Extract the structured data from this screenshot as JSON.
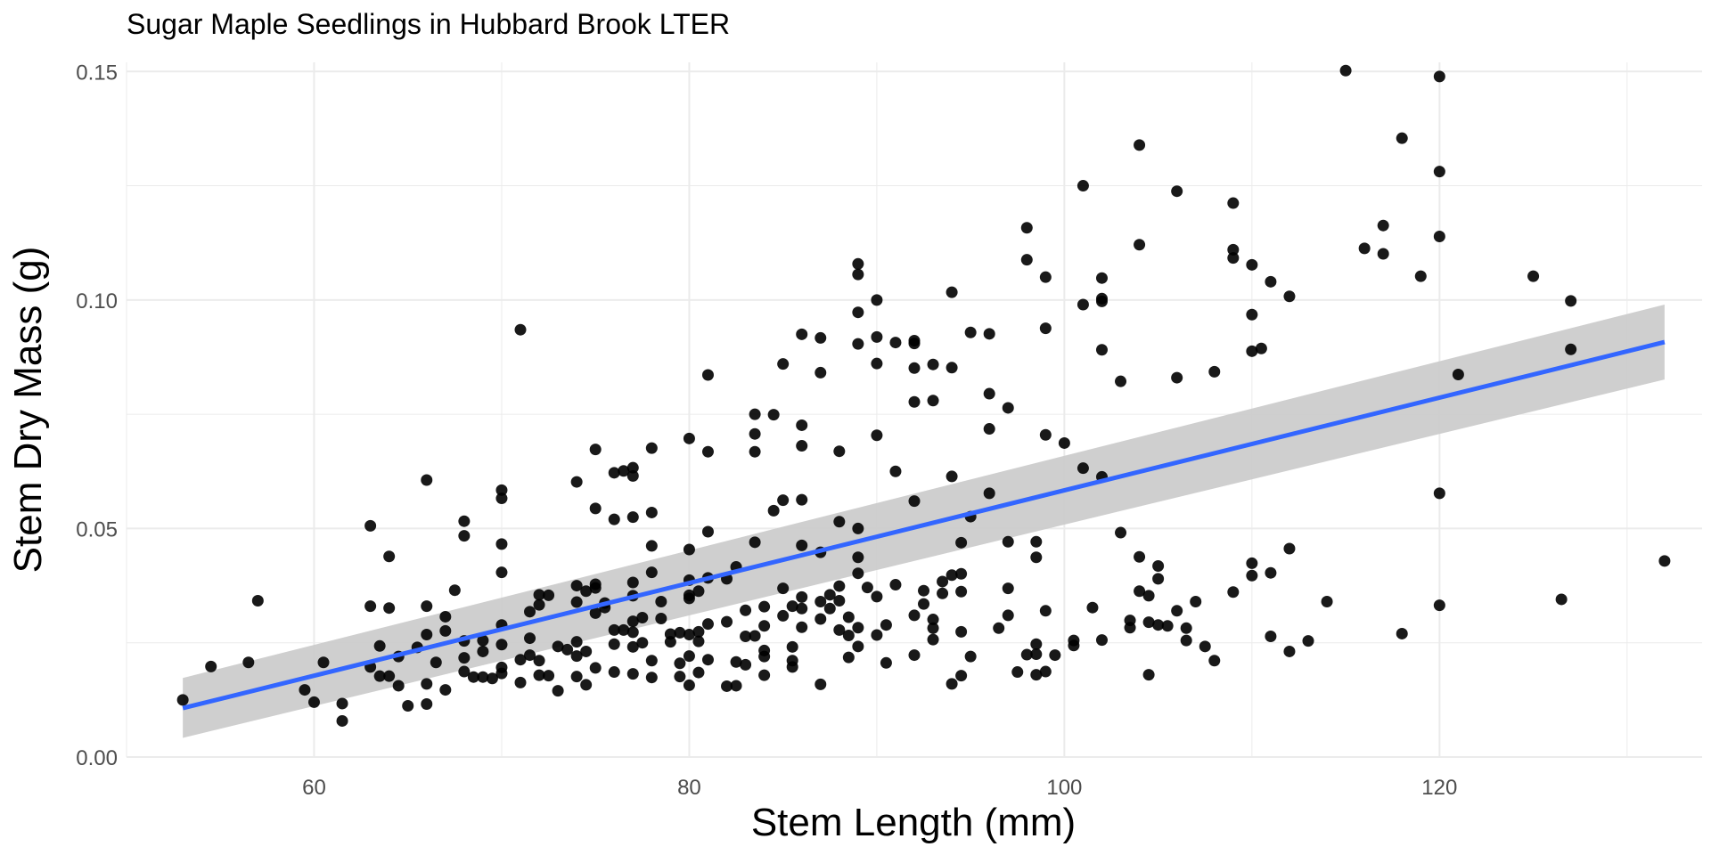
{
  "chart_data": {
    "type": "scatter",
    "title": "Sugar Maple Seedlings in Hubbard Brook LTER",
    "xlabel": "Stem Length (mm)",
    "ylabel": "Stem Dry Mass (g)",
    "xlim": [
      50,
      134
    ],
    "ylim": [
      0,
      0.152
    ],
    "x_ticks": [
      60,
      80,
      100,
      120
    ],
    "x_tick_labels": [
      "60",
      "80",
      "100",
      "120"
    ],
    "y_ticks": [
      0.0,
      0.05,
      0.1,
      0.15
    ],
    "y_tick_labels": [
      "0.00",
      "0.05",
      "0.10",
      "0.15"
    ],
    "grid": true,
    "point_color": "#000000",
    "fit_color": "#3366ff",
    "band_color": "#cccccc",
    "fit_line": {
      "method": "lm",
      "x": [
        53,
        132
      ],
      "y": [
        0.0107,
        0.0908
      ],
      "ci_lower": [
        0.0042,
        0.0826
      ],
      "ci_upper": [
        0.0173,
        0.099
      ]
    },
    "points": [
      [
        53,
        0.0125
      ],
      [
        54.5,
        0.0198
      ],
      [
        56.5,
        0.0207
      ],
      [
        57,
        0.0342
      ],
      [
        59.5,
        0.0147
      ],
      [
        60,
        0.012
      ],
      [
        60.5,
        0.0207
      ],
      [
        61.5,
        0.0117
      ],
      [
        61.5,
        0.0079
      ],
      [
        63,
        0.0506
      ],
      [
        63,
        0.033
      ],
      [
        63,
        0.0197
      ],
      [
        63.5,
        0.0243
      ],
      [
        63.5,
        0.0177
      ],
      [
        64,
        0.0439
      ],
      [
        64,
        0.0326
      ],
      [
        64,
        0.0177
      ],
      [
        64.5,
        0.022
      ],
      [
        64.5,
        0.0156
      ],
      [
        65,
        0.0112
      ],
      [
        65.5,
        0.024
      ],
      [
        66,
        0.0606
      ],
      [
        66,
        0.033
      ],
      [
        66,
        0.0268
      ],
      [
        66,
        0.0116
      ],
      [
        66,
        0.016
      ],
      [
        66.5,
        0.0207
      ],
      [
        67,
        0.0307
      ],
      [
        67,
        0.0276
      ],
      [
        67,
        0.0147
      ],
      [
        67.5,
        0.0365
      ],
      [
        68,
        0.0516
      ],
      [
        68,
        0.0484
      ],
      [
        68,
        0.0254
      ],
      [
        68,
        0.0217
      ],
      [
        68,
        0.0187
      ],
      [
        68.5,
        0.0175
      ],
      [
        69,
        0.0175
      ],
      [
        69,
        0.0255
      ],
      [
        69,
        0.0231
      ],
      [
        69.5,
        0.0172
      ],
      [
        70,
        0.0584
      ],
      [
        70,
        0.0566
      ],
      [
        70,
        0.0466
      ],
      [
        70,
        0.0404
      ],
      [
        70,
        0.0289
      ],
      [
        70,
        0.0246
      ],
      [
        70,
        0.0196
      ],
      [
        70,
        0.0183
      ],
      [
        71,
        0.0935
      ],
      [
        71,
        0.0213
      ],
      [
        71,
        0.0163
      ],
      [
        71.5,
        0.0318
      ],
      [
        71.5,
        0.026
      ],
      [
        71.5,
        0.0223
      ],
      [
        72,
        0.0355
      ],
      [
        72,
        0.0333
      ],
      [
        72,
        0.0211
      ],
      [
        72,
        0.0179
      ],
      [
        72.5,
        0.0354
      ],
      [
        72.5,
        0.0178
      ],
      [
        73,
        0.0242
      ],
      [
        73,
        0.0145
      ],
      [
        73.5,
        0.0235
      ],
      [
        74,
        0.0339
      ],
      [
        74,
        0.0221
      ],
      [
        74,
        0.0602
      ],
      [
        74,
        0.0375
      ],
      [
        74,
        0.0252
      ],
      [
        74,
        0.0176
      ],
      [
        74.5,
        0.0363
      ],
      [
        74.5,
        0.0231
      ],
      [
        74.5,
        0.0158
      ],
      [
        75,
        0.0673
      ],
      [
        75,
        0.0544
      ],
      [
        75,
        0.0378
      ],
      [
        75,
        0.037
      ],
      [
        75,
        0.0315
      ],
      [
        75,
        0.0195
      ],
      [
        75.5,
        0.0337
      ],
      [
        75.5,
        0.0327
      ],
      [
        76,
        0.0622
      ],
      [
        76,
        0.052
      ],
      [
        76,
        0.0278
      ],
      [
        76,
        0.0247
      ],
      [
        76,
        0.0186
      ],
      [
        76.5,
        0.0626
      ],
      [
        76.5,
        0.0278
      ],
      [
        77,
        0.0633
      ],
      [
        77,
        0.0615
      ],
      [
        77,
        0.0525
      ],
      [
        77,
        0.0382
      ],
      [
        77,
        0.0353
      ],
      [
        77,
        0.0297
      ],
      [
        77,
        0.0273
      ],
      [
        77,
        0.0241
      ],
      [
        77,
        0.0182
      ],
      [
        77.5,
        0.0305
      ],
      [
        77.5,
        0.025
      ],
      [
        78,
        0.0676
      ],
      [
        78,
        0.0535
      ],
      [
        78,
        0.0462
      ],
      [
        78,
        0.0404
      ],
      [
        78,
        0.0211
      ],
      [
        78,
        0.0174
      ],
      [
        78.5,
        0.034
      ],
      [
        78.5,
        0.0303
      ],
      [
        79,
        0.0269
      ],
      [
        79,
        0.0252
      ],
      [
        79.5,
        0.0272
      ],
      [
        79.5,
        0.0205
      ],
      [
        79.5,
        0.0176
      ],
      [
        80,
        0.0697
      ],
      [
        80,
        0.0454
      ],
      [
        80,
        0.0387
      ],
      [
        80,
        0.0354
      ],
      [
        80,
        0.0347
      ],
      [
        80,
        0.0268
      ],
      [
        80,
        0.0221
      ],
      [
        80,
        0.0157
      ],
      [
        80.5,
        0.0363
      ],
      [
        80.5,
        0.0274
      ],
      [
        80.5,
        0.0253
      ],
      [
        80.5,
        0.0185
      ],
      [
        81,
        0.0836
      ],
      [
        81,
        0.0668
      ],
      [
        81,
        0.0493
      ],
      [
        81,
        0.0392
      ],
      [
        81,
        0.0291
      ],
      [
        81,
        0.0213
      ],
      [
        82,
        0.039
      ],
      [
        82,
        0.0296
      ],
      [
        82,
        0.0155
      ],
      [
        82.5,
        0.0416
      ],
      [
        82.5,
        0.0208
      ],
      [
        82.5,
        0.0156
      ],
      [
        83,
        0.0321
      ],
      [
        83,
        0.0264
      ],
      [
        83,
        0.0202
      ],
      [
        83.5,
        0.075
      ],
      [
        83.5,
        0.0707
      ],
      [
        83.5,
        0.0668
      ],
      [
        83.5,
        0.047
      ],
      [
        83.5,
        0.0265
      ],
      [
        84,
        0.0329
      ],
      [
        84,
        0.0287
      ],
      [
        84,
        0.0233
      ],
      [
        84,
        0.022
      ],
      [
        84,
        0.0179
      ],
      [
        84.5,
        0.0749
      ],
      [
        84.5,
        0.0539
      ],
      [
        85,
        0.086
      ],
      [
        85,
        0.0562
      ],
      [
        85,
        0.0369
      ],
      [
        85,
        0.0309
      ],
      [
        85.5,
        0.033
      ],
      [
        85.5,
        0.0241
      ],
      [
        85.5,
        0.0211
      ],
      [
        85.5,
        0.0197
      ],
      [
        86,
        0.0925
      ],
      [
        86,
        0.0726
      ],
      [
        86,
        0.0681
      ],
      [
        86,
        0.0563
      ],
      [
        86,
        0.0463
      ],
      [
        86,
        0.035
      ],
      [
        86,
        0.0325
      ],
      [
        86,
        0.0284
      ],
      [
        87,
        0.0917
      ],
      [
        87,
        0.0841
      ],
      [
        87,
        0.0448
      ],
      [
        87,
        0.034
      ],
      [
        87,
        0.0302
      ],
      [
        87,
        0.0159
      ],
      [
        87.5,
        0.0355
      ],
      [
        87.5,
        0.0325
      ],
      [
        88,
        0.0669
      ],
      [
        88,
        0.0515
      ],
      [
        88,
        0.0374
      ],
      [
        88,
        0.0342
      ],
      [
        88,
        0.0278
      ],
      [
        88.5,
        0.0306
      ],
      [
        88.5,
        0.0266
      ],
      [
        88.5,
        0.0218
      ],
      [
        89,
        0.1079
      ],
      [
        89,
        0.1056
      ],
      [
        89,
        0.0973
      ],
      [
        89,
        0.0904
      ],
      [
        89,
        0.05
      ],
      [
        89,
        0.0437
      ],
      [
        89,
        0.0402
      ],
      [
        89,
        0.0283
      ],
      [
        89,
        0.0242
      ],
      [
        89.5,
        0.0371
      ],
      [
        90,
        0.1
      ],
      [
        90,
        0.0919
      ],
      [
        90,
        0.0861
      ],
      [
        90,
        0.0704
      ],
      [
        90,
        0.0351
      ],
      [
        90,
        0.0267
      ],
      [
        90.5,
        0.0289
      ],
      [
        90.5,
        0.0206
      ],
      [
        91,
        0.0907
      ],
      [
        91,
        0.0625
      ],
      [
        91,
        0.0377
      ],
      [
        92,
        0.0911
      ],
      [
        92,
        0.0905
      ],
      [
        92,
        0.0851
      ],
      [
        92,
        0.0777
      ],
      [
        92,
        0.056
      ],
      [
        92,
        0.031
      ],
      [
        92,
        0.0223
      ],
      [
        92.5,
        0.0364
      ],
      [
        92.5,
        0.0335
      ],
      [
        93,
        0.0859
      ],
      [
        93,
        0.078
      ],
      [
        93,
        0.0301
      ],
      [
        93,
        0.0282
      ],
      [
        93,
        0.0257
      ],
      [
        93.5,
        0.0384
      ],
      [
        93.5,
        0.0358
      ],
      [
        94,
        0.1017
      ],
      [
        94,
        0.0852
      ],
      [
        94,
        0.0614
      ],
      [
        94,
        0.0398
      ],
      [
        94,
        0.016
      ],
      [
        94.5,
        0.0401
      ],
      [
        94.5,
        0.0469
      ],
      [
        94.5,
        0.0362
      ],
      [
        94.5,
        0.0274
      ],
      [
        94.5,
        0.0178
      ],
      [
        95,
        0.0929
      ],
      [
        95,
        0.0526
      ],
      [
        95,
        0.022
      ],
      [
        96,
        0.0926
      ],
      [
        96,
        0.0795
      ],
      [
        96,
        0.0718
      ],
      [
        96,
        0.0577
      ],
      [
        96.5,
        0.0282
      ],
      [
        97,
        0.0764
      ],
      [
        97,
        0.0471
      ],
      [
        97,
        0.0369
      ],
      [
        97,
        0.031
      ],
      [
        97.5,
        0.0186
      ],
      [
        98,
        0.1158
      ],
      [
        98,
        0.1088
      ],
      [
        98,
        0.0224
      ],
      [
        98.5,
        0.0471
      ],
      [
        98.5,
        0.0437
      ],
      [
        98.5,
        0.0247
      ],
      [
        98.5,
        0.018
      ],
      [
        98.5,
        0.0225
      ],
      [
        99,
        0.105
      ],
      [
        99,
        0.0938
      ],
      [
        99,
        0.0705
      ],
      [
        99,
        0.032
      ],
      [
        99,
        0.0187
      ],
      [
        99.5,
        0.0223
      ],
      [
        100,
        0.0687
      ],
      [
        100.5,
        0.0255
      ],
      [
        100.5,
        0.0244
      ],
      [
        101,
        0.125
      ],
      [
        101,
        0.099
      ],
      [
        101,
        0.0632
      ],
      [
        101.5,
        0.0327
      ],
      [
        102,
        0.1048
      ],
      [
        102,
        0.1003
      ],
      [
        102,
        0.0997
      ],
      [
        102,
        0.0891
      ],
      [
        102,
        0.0613
      ],
      [
        102,
        0.0256
      ],
      [
        103,
        0.0822
      ],
      [
        103,
        0.0491
      ],
      [
        103.5,
        0.0299
      ],
      [
        103.5,
        0.0283
      ],
      [
        104,
        0.1339
      ],
      [
        104,
        0.1121
      ],
      [
        104,
        0.0438
      ],
      [
        104,
        0.0363
      ],
      [
        104.5,
        0.0353
      ],
      [
        104.5,
        0.018
      ],
      [
        104.5,
        0.0295
      ],
      [
        105,
        0.0418
      ],
      [
        105,
        0.039
      ],
      [
        105,
        0.0289
      ],
      [
        105.5,
        0.0287
      ],
      [
        106,
        0.1238
      ],
      [
        106,
        0.083
      ],
      [
        106,
        0.032
      ],
      [
        106.5,
        0.0255
      ],
      [
        106.5,
        0.0282
      ],
      [
        107,
        0.034
      ],
      [
        107.5,
        0.0242
      ],
      [
        108,
        0.0843
      ],
      [
        108,
        0.0211
      ],
      [
        109,
        0.1212
      ],
      [
        109,
        0.111
      ],
      [
        109,
        0.1092
      ],
      [
        109,
        0.0361
      ],
      [
        110,
        0.1077
      ],
      [
        110,
        0.0968
      ],
      [
        110,
        0.0888
      ],
      [
        110,
        0.0424
      ],
      [
        110,
        0.0397
      ],
      [
        110.5,
        0.0894
      ],
      [
        111,
        0.104
      ],
      [
        111,
        0.0403
      ],
      [
        111,
        0.0264
      ],
      [
        112,
        0.1008
      ],
      [
        112,
        0.0456
      ],
      [
        112,
        0.0231
      ],
      [
        113,
        0.0254
      ],
      [
        114,
        0.034
      ],
      [
        115,
        0.1502
      ],
      [
        116,
        0.1113
      ],
      [
        117,
        0.1163
      ],
      [
        117,
        0.1101
      ],
      [
        118,
        0.1354
      ],
      [
        118,
        0.027
      ],
      [
        119,
        0.1052
      ],
      [
        120,
        0.1489
      ],
      [
        120,
        0.1281
      ],
      [
        120,
        0.1139
      ],
      [
        120,
        0.0332
      ],
      [
        120,
        0.0577
      ],
      [
        121,
        0.0837
      ],
      [
        125,
        0.1052
      ],
      [
        126.5,
        0.0345
      ],
      [
        127,
        0.0998
      ],
      [
        127,
        0.0892
      ],
      [
        132,
        0.0429
      ]
    ]
  }
}
